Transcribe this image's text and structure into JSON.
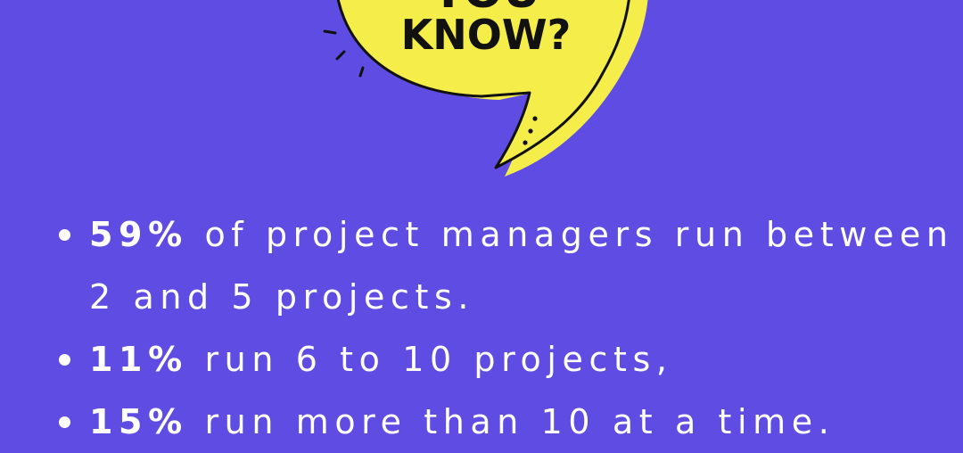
{
  "bubble": {
    "title_top": "YOU",
    "title_bottom": "KNOW?",
    "fill": "#f5ee4a",
    "stroke": "#111111"
  },
  "background": "#5f4de3",
  "facts": [
    {
      "stat": "59%",
      "text": " of project managers run between 2 and 5 projects."
    },
    {
      "stat": "11%",
      "text": " run 6 to 10 projects,"
    },
    {
      "stat": "15%",
      "text": " run more than 10 at a time."
    }
  ]
}
